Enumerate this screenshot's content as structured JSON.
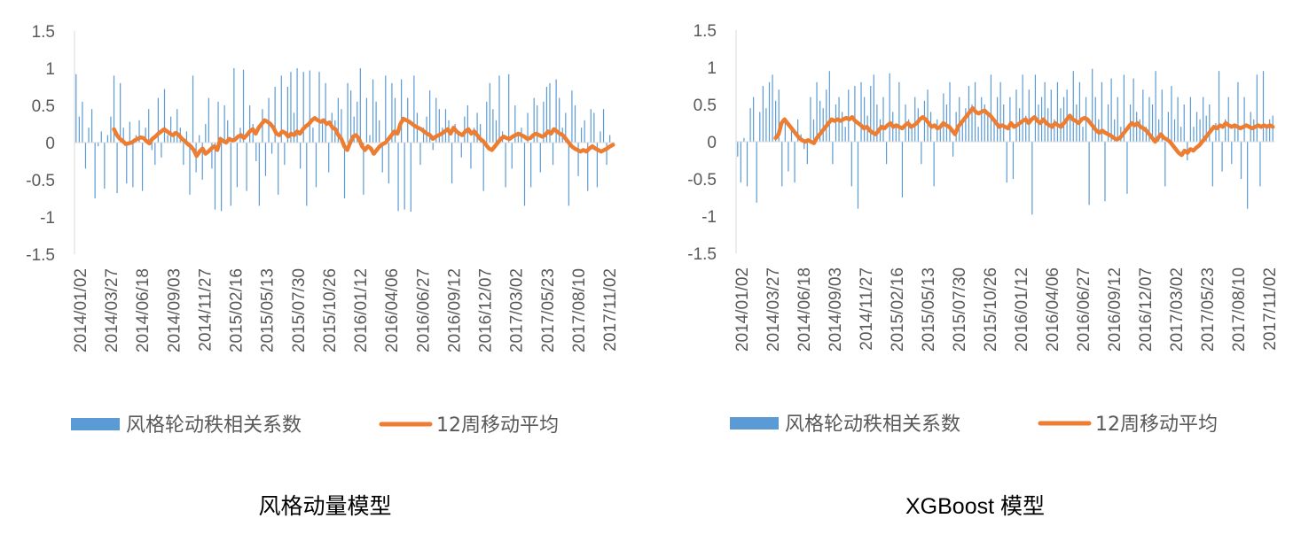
{
  "chart_data": [
    {
      "type": "bar+line",
      "caption": "风格动量模型",
      "ylim": [
        -1.5,
        1.5
      ],
      "yticks": [
        1.5,
        1,
        0.5,
        0,
        -0.5,
        -1,
        -1.5
      ],
      "ytick_labels": [
        "1.5",
        "1",
        "0.5",
        "0",
        "-0.5",
        "-1",
        "-1.5"
      ],
      "x_tick_labels": [
        "2014/01/02",
        "2014/03/27",
        "2014/06/18",
        "2014/09/03",
        "2014/11/27",
        "2015/02/16",
        "2015/05/13",
        "2015/07/30",
        "2015/10/26",
        "2016/01/12",
        "2016/04/06",
        "2016/06/27",
        "2016/09/12",
        "2016/12/07",
        "2017/03/02",
        "2017/05/23",
        "2017/08/10",
        "2017/11/02"
      ],
      "legend": [
        "风格轮动秩相关系数",
        "12周移动平均"
      ],
      "series_colors": {
        "bars": "#5B9BD5",
        "line": "#ED7D31"
      },
      "series": [
        {
          "name": "风格轮动秩相关系数",
          "type": "bar",
          "values": [
            0.92,
            0.35,
            0.55,
            -0.35,
            0.2,
            0.45,
            -0.75,
            -0.05,
            0.15,
            -0.62,
            0.1,
            0.35,
            0.9,
            -0.68,
            0.8,
            0.2,
            -0.55,
            0.28,
            -0.6,
            0.1,
            0.3,
            -0.65,
            0.2,
            0.45,
            -0.1,
            -0.3,
            0.6,
            -0.2,
            0.72,
            0.1,
            0.35,
            0.15,
            0.45,
            0.2,
            -0.3,
            0.15,
            -0.7,
            0.9,
            -0.4,
            0.1,
            -0.5,
            0.25,
            0.6,
            -0.35,
            -0.9,
            0.55,
            -0.92,
            0.5,
            0.3,
            -0.85,
            1.0,
            -0.6,
            0.2,
            0.98,
            -0.65,
            0.5,
            0.25,
            -0.25,
            -0.85,
            0.45,
            -0.45,
            0.6,
            -0.15,
            0.75,
            -0.7,
            0.9,
            -0.3,
            0.75,
            0.95,
            0.4,
            1.0,
            -0.35,
            0.95,
            -0.85,
            0.97,
            0.2,
            -0.6,
            0.95,
            0.3,
            0.8,
            -0.4,
            0.4,
            0.3,
            0.6,
            0.45,
            -0.75,
            0.8,
            0.7,
            0.35,
            0.55,
            1.0,
            -0.7,
            0.6,
            0.1,
            0.85,
            0.55,
            0.3,
            -0.4,
            0.9,
            -0.55,
            0.8,
            0.6,
            -0.92,
            0.85,
            -0.9,
            0.6,
            -0.93,
            0.9,
            0.4,
            -0.3,
            0.2,
            0.35,
            0.7,
            -0.1,
            0.6,
            0.45,
            0.2,
            0.45,
            0.3,
            -0.55,
            0.25,
            0.15,
            -0.2,
            0.35,
            0.5,
            -0.35,
            0.2,
            0.4,
            0.25,
            -0.65,
            0.55,
            0.8,
            0.45,
            0.3,
            0.9,
            0.15,
            -0.6,
            0.92,
            -0.35,
            0.5,
            0.1,
            0.2,
            -0.85,
            0.4,
            -0.6,
            0.6,
            0.5,
            -0.4,
            0.55,
            0.75,
            0.8,
            -0.3,
            0.85,
            0.6,
            0.2,
            0.4,
            -0.85,
            0.7,
            0.5,
            -0.45,
            0.2,
            0.3,
            -0.65,
            0.45,
            0.4,
            -0.6,
            0.15,
            0.45,
            -0.3,
            0.1,
            -0.05
          ],
          "length": 170
        },
        {
          "name": "12周移动平均",
          "type": "line",
          "values": [
            0.18,
            0.1,
            0.05,
            0.02,
            -0.02,
            -0.01,
            0.0,
            0.03,
            0.05,
            0.07,
            0.06,
            0.02,
            -0.01,
            0.05,
            0.08,
            0.12,
            0.15,
            0.18,
            0.15,
            0.12,
            0.1,
            0.13,
            0.1,
            0.05,
            0.02,
            -0.02,
            -0.05,
            -0.1,
            -0.18,
            -0.12,
            -0.08,
            -0.15,
            -0.12,
            -0.08,
            -0.05,
            -0.1,
            0.05,
            0.02,
            0.0,
            0.05,
            0.03,
            0.04,
            0.08,
            0.1,
            0.06,
            0.1,
            0.15,
            0.18,
            0.12,
            0.2,
            0.25,
            0.3,
            0.28,
            0.25,
            0.2,
            0.12,
            0.1,
            0.15,
            0.13,
            0.08,
            0.12,
            0.1,
            0.15,
            0.12,
            0.18,
            0.22,
            0.25,
            0.3,
            0.33,
            0.3,
            0.28,
            0.3,
            0.25,
            0.27,
            0.2,
            0.18,
            0.1,
            0.05,
            -0.05,
            -0.1,
            0.0,
            0.08,
            0.1,
            0.05,
            -0.05,
            -0.1,
            -0.05,
            -0.08,
            -0.15,
            -0.1,
            -0.05,
            -0.02,
            0.0,
            0.05,
            0.1,
            0.15,
            0.12,
            0.25,
            0.32,
            0.3,
            0.28,
            0.25,
            0.22,
            0.2,
            0.18,
            0.15,
            0.12,
            0.1,
            0.05,
            0.08,
            0.1,
            0.12,
            0.15,
            0.18,
            0.12,
            0.2,
            0.15,
            0.12,
            0.1,
            0.15,
            0.18,
            0.12,
            0.15,
            0.1,
            0.05,
            0.02,
            -0.03,
            -0.08,
            -0.1,
            -0.05,
            0.0,
            0.05,
            0.08,
            0.06,
            0.05,
            0.08,
            0.1,
            0.12,
            0.1,
            0.08,
            0.05,
            0.06,
            0.1,
            0.12,
            0.1,
            0.08,
            0.1,
            0.15,
            0.12,
            0.18,
            0.15,
            0.12,
            0.1,
            0.05,
            0.0,
            -0.05,
            -0.08,
            -0.1,
            -0.12,
            -0.1,
            -0.12,
            -0.08,
            -0.05,
            -0.08,
            -0.1,
            -0.12,
            -0.1,
            -0.08,
            -0.05,
            -0.03
          ],
          "length": 170
        }
      ]
    },
    {
      "type": "bar+line",
      "caption": "XGBoost 模型",
      "ylim": [
        -1.5,
        1.5
      ],
      "yticks": [
        1.5,
        1,
        0.5,
        0,
        -0.5,
        -1,
        -1.5
      ],
      "ytick_labels": [
        "1.5",
        "1",
        "0.5",
        "0",
        "-0.5",
        "-1",
        "-1.5"
      ],
      "x_tick_labels": [
        "2014/01/02",
        "2014/03/27",
        "2014/06/18",
        "2014/09/03",
        "2014/11/27",
        "2015/02/16",
        "2015/05/13",
        "2015/07/30",
        "2015/10/26",
        "2016/01/12",
        "2016/04/06",
        "2016/06/27",
        "2016/09/12",
        "2016/12/07",
        "2017/03/02",
        "2017/05/23",
        "2017/08/10",
        "2017/11/02"
      ],
      "legend": [
        "风格轮动秩相关系数",
        "12周移动平均"
      ],
      "series_colors": {
        "bars": "#5B9BD5",
        "line": "#ED7D31"
      },
      "series": [
        {
          "name": "风格轮动秩相关系数",
          "type": "bar",
          "values": [
            -0.2,
            -0.55,
            0.05,
            -0.6,
            0.45,
            0.6,
            -0.82,
            0.4,
            0.75,
            0.45,
            0.8,
            0.9,
            0.55,
            0.7,
            -0.6,
            0.3,
            -0.4,
            0.2,
            -0.55,
            0.3,
            0.1,
            -0.1,
            -0.3,
            0.6,
            0.3,
            0.8,
            0.55,
            0.45,
            0.7,
            0.95,
            -0.3,
            0.5,
            0.6,
            0.4,
            0.2,
            0.7,
            -0.6,
            0.75,
            -0.9,
            0.8,
            0.6,
            0.35,
            0.75,
            0.9,
            0.5,
            0.3,
            0.6,
            -0.3,
            0.92,
            0.4,
            0.2,
            0.8,
            -0.75,
            0.5,
            0.3,
            0.2,
            0.6,
            0.45,
            -0.3,
            0.55,
            0.7,
            0.4,
            -0.6,
            0.3,
            0.2,
            0.65,
            0.5,
            0.8,
            -0.2,
            0.4,
            0.6,
            0.3,
            0.45,
            0.75,
            0.5,
            0.8,
            0.2,
            0.6,
            0.5,
            0.35,
            0.9,
            0.3,
            0.6,
            0.8,
            0.5,
            -0.55,
            0.6,
            -0.5,
            0.7,
            0.45,
            0.9,
            0.35,
            0.7,
            -0.98,
            0.9,
            0.5,
            0.6,
            0.8,
            0.45,
            0.7,
            0.3,
            0.8,
            0.45,
            0.6,
            0.7,
            0.3,
            0.95,
            0.5,
            0.8,
            0.2,
            0.6,
            -0.85,
            0.98,
            0.6,
            0.3,
            0.8,
            -0.8,
            0.5,
            0.85,
            0.3,
            0.6,
            0.2,
            0.9,
            -0.7,
            0.5,
            0.85,
            0.4,
            0.3,
            0.7,
            0.2,
            0.6,
            0.5,
            0.95,
            0.3,
            0.7,
            -0.6,
            0.4,
            0.75,
            0.3,
            0.6,
            0.2,
            0.5,
            -0.25,
            0.6,
            0.2,
            0.4,
            0.3,
            0.6,
            0.35,
            0.5,
            -0.6,
            0.25,
            0.95,
            -0.4,
            0.3,
            0.6,
            -0.3,
            0.2,
            0.8,
            -0.5,
            0.6,
            -0.9,
            0.4,
            0.3,
            0.9,
            -0.6,
            0.95,
            0.2,
            0.3,
            0.35
          ],
          "length": 170
        },
        {
          "name": "12周移动平均",
          "type": "line",
          "values": [
            0.05,
            0.1,
            0.25,
            0.3,
            0.25,
            0.2,
            0.15,
            0.1,
            0.05,
            0.02,
            0.0,
            0.02,
            0.0,
            -0.02,
            0.05,
            0.1,
            0.15,
            0.2,
            0.25,
            0.3,
            0.28,
            0.3,
            0.28,
            0.3,
            0.32,
            0.3,
            0.33,
            0.28,
            0.25,
            0.22,
            0.18,
            0.2,
            0.15,
            0.12,
            0.1,
            0.15,
            0.2,
            0.18,
            0.22,
            0.25,
            0.2,
            0.22,
            0.2,
            0.18,
            0.22,
            0.25,
            0.2,
            0.22,
            0.25,
            0.3,
            0.33,
            0.3,
            0.25,
            0.2,
            0.22,
            0.18,
            0.2,
            0.25,
            0.22,
            0.2,
            0.15,
            0.1,
            0.2,
            0.25,
            0.3,
            0.35,
            0.4,
            0.45,
            0.4,
            0.38,
            0.4,
            0.42,
            0.38,
            0.35,
            0.3,
            0.25,
            0.2,
            0.22,
            0.2,
            0.18,
            0.25,
            0.2,
            0.22,
            0.25,
            0.28,
            0.3,
            0.25,
            0.3,
            0.33,
            0.28,
            0.25,
            0.3,
            0.25,
            0.22,
            0.2,
            0.25,
            0.22,
            0.2,
            0.25,
            0.3,
            0.35,
            0.3,
            0.28,
            0.25,
            0.3,
            0.32,
            0.3,
            0.25,
            0.2,
            0.15,
            0.12,
            0.15,
            0.12,
            0.1,
            0.08,
            0.05,
            0.03,
            0.05,
            0.1,
            0.15,
            0.2,
            0.25,
            0.22,
            0.25,
            0.2,
            0.18,
            0.15,
            0.1,
            0.05,
            0.0,
            0.05,
            0.1,
            0.05,
            0.03,
            0.0,
            -0.05,
            -0.1,
            -0.15,
            -0.18,
            -0.12,
            -0.15,
            -0.1,
            -0.12,
            -0.08,
            -0.05,
            0.0,
            0.05,
            0.1,
            0.15,
            0.2,
            0.18,
            0.22,
            0.2,
            0.25,
            0.22,
            0.2,
            0.22,
            0.2,
            0.18,
            0.2,
            0.22,
            0.2,
            0.18,
            0.2,
            0.22,
            0.2,
            0.22,
            0.2,
            0.22,
            0.2
          ],
          "length": 170
        }
      ]
    }
  ]
}
